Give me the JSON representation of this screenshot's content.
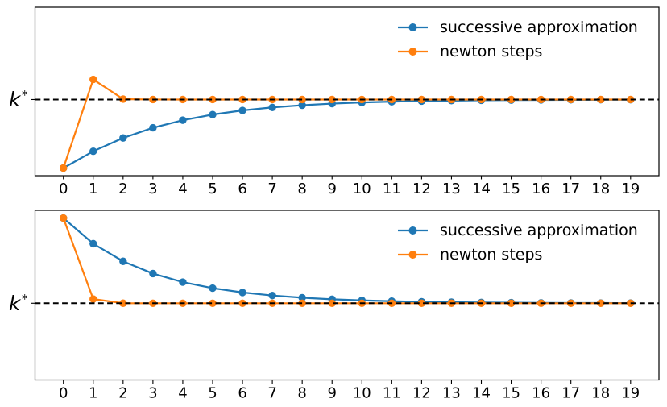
{
  "figure": {
    "background": "#ffffff",
    "text_color": "#000000",
    "axis_color": "#000000"
  },
  "chart_data": [
    {
      "type": "line",
      "subplot": "top",
      "title": "",
      "xlabel": "",
      "ylabel": "",
      "grid": false,
      "x": [
        0,
        1,
        2,
        3,
        4,
        5,
        6,
        7,
        8,
        9,
        10,
        11,
        12,
        13,
        14,
        15,
        16,
        17,
        18,
        19
      ],
      "x_tick_labels": [
        "0",
        "1",
        "2",
        "3",
        "4",
        "5",
        "6",
        "7",
        "8",
        "9",
        "10",
        "11",
        "12",
        "13",
        "14",
        "15",
        "16",
        "17",
        "18",
        "19"
      ],
      "xlim": [
        -0.95,
        19.95
      ],
      "ylim": [
        0.69,
        3.11
      ],
      "k_star": 1.7846,
      "y_tick_label": {
        "base": "k",
        "sup": "*"
      },
      "reference_line": {
        "y": 1.7846,
        "style": "dashed",
        "color": "#000000"
      },
      "series": [
        {
          "name": "successive approximation",
          "color": "#1f77b4",
          "marker": "circle",
          "values": [
            0.8,
            1.0412,
            1.232,
            1.378,
            1.4874,
            1.5683,
            1.6277,
            1.671,
            1.7025,
            1.7253,
            1.7419,
            1.7538,
            1.7624,
            1.7686,
            1.7731,
            1.7763,
            1.7786,
            1.7803,
            1.7815,
            1.7824
          ]
        },
        {
          "name": "newton steps",
          "color": "#ff7f0e",
          "marker": "circle",
          "values": [
            0.8,
            2.0728,
            1.7904,
            1.7847,
            1.7846,
            1.7846,
            1.7846,
            1.7846,
            1.7846,
            1.7846,
            1.7846,
            1.7846,
            1.7846,
            1.7846,
            1.7846,
            1.7846,
            1.7846,
            1.7846,
            1.7846,
            1.7846
          ]
        }
      ],
      "legend": {
        "position": "upper right",
        "frame": false,
        "entries": [
          {
            "label": "successive approximation",
            "color": "#1f77b4"
          },
          {
            "label": "newton steps",
            "color": "#ff7f0e"
          }
        ]
      }
    },
    {
      "type": "line",
      "subplot": "bottom",
      "title": "",
      "xlabel": "",
      "ylabel": "",
      "grid": false,
      "x": [
        0,
        1,
        2,
        3,
        4,
        5,
        6,
        7,
        8,
        9,
        10,
        11,
        12,
        13,
        14,
        15,
        16,
        17,
        18,
        19
      ],
      "x_tick_labels": [
        "0",
        "1",
        "2",
        "3",
        "4",
        "5",
        "6",
        "7",
        "8",
        "9",
        "10",
        "11",
        "12",
        "13",
        "14",
        "15",
        "16",
        "17",
        "18",
        "19"
      ],
      "xlim": [
        -0.95,
        19.95
      ],
      "ylim": [
        0.69,
        3.11
      ],
      "k_star": 1.7846,
      "y_tick_label": {
        "base": "k",
        "sup": "*"
      },
      "reference_line": {
        "y": 1.7846,
        "style": "dashed",
        "color": "#000000"
      },
      "series": [
        {
          "name": "successive approximation",
          "color": "#1f77b4",
          "marker": "circle",
          "values": [
            3.0,
            2.6342,
            2.3828,
            2.2083,
            2.086,
            1.9997,
            1.9385,
            1.8949,
            1.8637,
            1.8414,
            1.8254,
            1.8139,
            1.8056,
            1.7997,
            1.7954,
            1.7924,
            1.7902,
            1.7886,
            1.7875,
            1.7867
          ]
        },
        {
          "name": "newton steps",
          "color": "#ff7f0e",
          "marker": "circle",
          "values": [
            3.0,
            1.8446,
            1.7849,
            1.7846,
            1.7846,
            1.7846,
            1.7846,
            1.7846,
            1.7846,
            1.7846,
            1.7846,
            1.7846,
            1.7846,
            1.7846,
            1.7846,
            1.7846,
            1.7846,
            1.7846,
            1.7846,
            1.7846
          ]
        }
      ],
      "legend": {
        "position": "upper right",
        "frame": false,
        "entries": [
          {
            "label": "successive approximation",
            "color": "#1f77b4"
          },
          {
            "label": "newton steps",
            "color": "#ff7f0e"
          }
        ]
      }
    }
  ]
}
